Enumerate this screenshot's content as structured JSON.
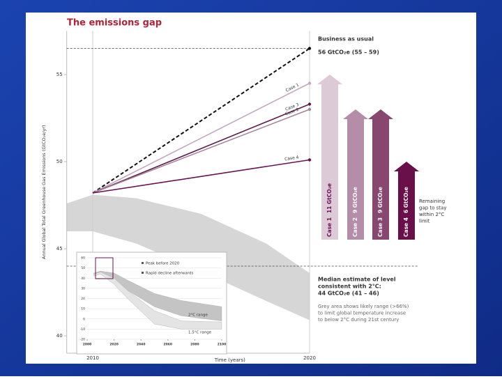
{
  "chart_data": [
    {
      "type": "line",
      "title": "The emissions gap",
      "ylabel": "Annual Global Total Greenhouse Gas Emissions (GtCO₂e/yr)",
      "xlabel": "Time (years)",
      "xlim": [
        2008.8,
        2020
      ],
      "xticks": [
        2010,
        2020
      ],
      "ylim": [
        39,
        57.5
      ],
      "yticks": [
        40,
        45,
        50,
        55
      ],
      "x": [
        2010,
        2020
      ],
      "series": [
        {
          "name": "Business as usual",
          "color": "#111111",
          "dashed": true,
          "values": [
            48.2,
            56.5
          ]
        },
        {
          "name": "Case 1",
          "color": "#c4a6bd",
          "values": [
            48.2,
            54.5
          ]
        },
        {
          "name": "Case 3",
          "color": "#5e1d4c",
          "values": [
            48.2,
            53.3
          ]
        },
        {
          "name": "Case 2",
          "color": "#a5849c",
          "values": [
            48.2,
            53.0
          ]
        },
        {
          "name": "Case 4",
          "color": "#6a1050",
          "values": [
            48.2,
            50.1
          ]
        }
      ],
      "range": {
        "name": "2°C range",
        "color": "#d6d6d6",
        "x": [
          2008.8,
          2010,
          2012,
          2015,
          2018,
          2020
        ],
        "upper": [
          47.6,
          48.1,
          47.9,
          47.0,
          45.3,
          43.6
        ],
        "lower": [
          46.0,
          46.0,
          45.3,
          43.7,
          42.0,
          40.9
        ]
      },
      "reference_lines": [
        {
          "value": 56.5
        },
        {
          "value": 44
        }
      ],
      "bau_label": "Business as usual",
      "bau_value": "56 GtCO₂e (55 – 59)",
      "median_label": [
        "Median estimate of level",
        "consistent with 2°C:"
      ],
      "median_value": "44 GtCO₂e (41 – 46)",
      "note": [
        "Grey area shows likely range (>66%)",
        "to limit global temperature increase",
        "to below 2°C during 21st century"
      ],
      "gaps": {
        "text": [
          "Remaining",
          "gap to stay",
          "within 2°C",
          "limit"
        ],
        "cases": [
          {
            "name": "Case 1",
            "value": 11,
            "value_label": "11 GtCO₂e",
            "color": "#dccbd7"
          },
          {
            "name": "Case 2",
            "value": 9,
            "value_label": "9 GtCO₂e",
            "color": "#b48da9"
          },
          {
            "name": "Case 3",
            "value": 9,
            "value_label": "9 GtCO₂e",
            "color": "#87476f"
          },
          {
            "name": "Case 4",
            "value": 6,
            "value_label": "6 GtCO₂e",
            "color": "#69104a"
          }
        ]
      }
    },
    {
      "type": "area",
      "xlim": [
        2000,
        2100
      ],
      "xticks": [
        2000,
        2020,
        2040,
        2060,
        2080,
        2100
      ],
      "ylim": [
        -20,
        60
      ],
      "yticks": [
        -20,
        -10,
        0,
        10,
        20,
        30,
        40,
        50,
        60
      ],
      "legend": [
        "Peak before 2020",
        "Rapid decline afterwards"
      ],
      "series": [
        {
          "name": "2°C range",
          "color": "#c4c4c4",
          "x": [
            2005,
            2010,
            2020,
            2030,
            2050,
            2070,
            2100
          ],
          "upper": [
            45,
            47,
            45,
            38,
            25,
            18,
            12
          ],
          "lower": [
            43,
            45,
            38,
            28,
            12,
            3,
            -2
          ]
        },
        {
          "name": "1.5°C range",
          "color": "#e4e4e4",
          "x": [
            2005,
            2010,
            2020,
            2030,
            2050,
            2070,
            2100
          ],
          "upper": [
            44,
            46,
            40,
            28,
            8,
            -2,
            -3
          ],
          "lower": [
            42,
            44,
            34,
            20,
            -5,
            -10,
            -10
          ]
        }
      ]
    }
  ]
}
